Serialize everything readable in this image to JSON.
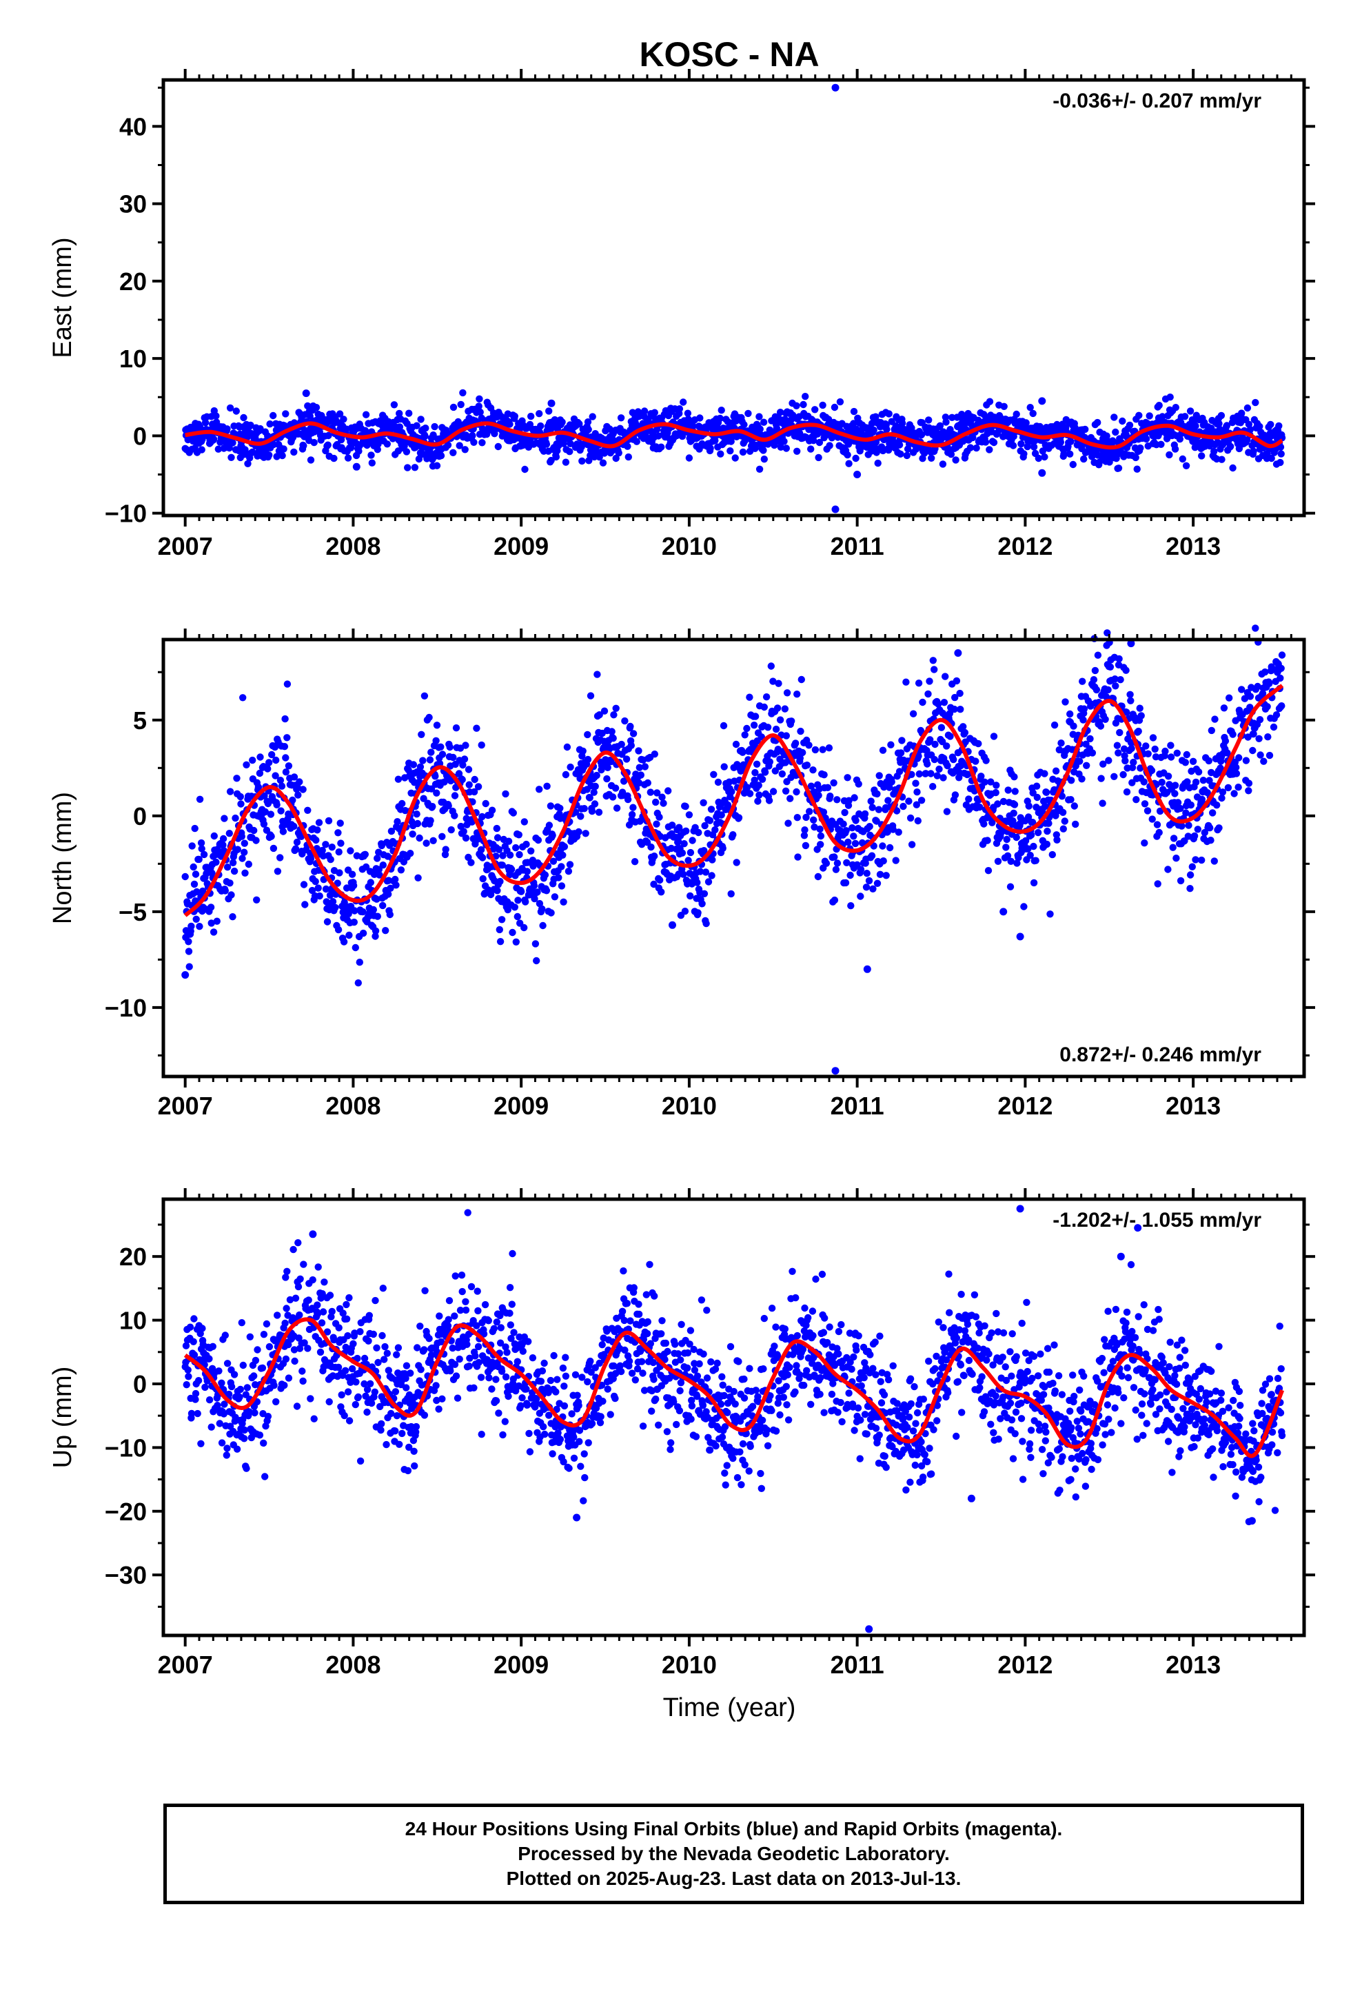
{
  "title": "KOSC - NA",
  "xlabel": "Time (year)",
  "caption": [
    "24 Hour Positions Using Final Orbits (blue) and Rapid Orbits (magenta).",
    "Processed by the Nevada Geodetic Laboratory.",
    "Plotted on 2025-Aug-23. Last data on 2013-Jul-13."
  ],
  "colors": {
    "points": "#0000ff",
    "fit": "#ff0000",
    "axis": "#000000"
  },
  "chart_data": [
    {
      "type": "scatter",
      "ylabel": "East (mm)",
      "rate": "-0.036+/- 0.207 mm/yr",
      "rate_position": "top-right",
      "xlim": [
        2006.87,
        2013.66
      ],
      "ylim": [
        -10.3,
        46
      ],
      "x_ticks": [
        2007,
        2008,
        2009,
        2010,
        2011,
        2012,
        2013
      ],
      "x_tick_labels": [
        "2007",
        "2008",
        "2009",
        "2010",
        "2011",
        "2012",
        "2013"
      ],
      "y_ticks": [
        -10,
        0,
        10,
        20,
        30,
        40
      ],
      "y_tick_labels": [
        "−10",
        "0",
        "10",
        "20",
        "30",
        "40"
      ],
      "fit": {
        "x": [
          2007.0,
          2007.15,
          2007.3,
          2007.45,
          2007.6,
          2007.75,
          2007.9,
          2008.05,
          2008.2,
          2008.35,
          2008.5,
          2008.65,
          2008.8,
          2008.95,
          2009.1,
          2009.25,
          2009.4,
          2009.55,
          2009.7,
          2009.85,
          2010.0,
          2010.15,
          2010.3,
          2010.45,
          2010.6,
          2010.75,
          2010.9,
          2011.05,
          2011.2,
          2011.35,
          2011.5,
          2011.65,
          2011.8,
          2011.95,
          2012.1,
          2012.25,
          2012.4,
          2012.55,
          2012.7,
          2012.85,
          2013.0,
          2013.15,
          2013.3,
          2013.45,
          2013.53
        ],
        "y": [
          0.1,
          0.5,
          -0.3,
          -1.0,
          0.6,
          1.6,
          0.4,
          -0.2,
          0.3,
          -0.4,
          -1.1,
          0.8,
          1.6,
          0.6,
          0.0,
          0.4,
          -0.6,
          -1.3,
          0.7,
          1.5,
          0.7,
          0.2,
          0.6,
          -0.5,
          1.0,
          1.4,
          0.3,
          -0.5,
          0.2,
          -0.8,
          -1.2,
          0.3,
          1.4,
          0.6,
          -0.2,
          0.1,
          -1.1,
          -1.4,
          0.6,
          1.3,
          0.2,
          -0.2,
          0.4,
          -1.3,
          -0.6
        ]
      },
      "outliers": [
        {
          "x": 2010.87,
          "y": 45
        },
        {
          "x": 2010.87,
          "y": -9.5
        },
        {
          "x": 2008.02,
          "y": -4.0
        },
        {
          "x": 2011.0,
          "y": -5.0
        },
        {
          "x": 2012.1,
          "y": -4.8
        },
        {
          "x": 2012.1,
          "y": 4.5
        },
        {
          "x": 2007.72,
          "y": 5.5
        },
        {
          "x": 2009.18,
          "y": 4.2
        }
      ]
    },
    {
      "type": "scatter",
      "ylabel": "North (mm)",
      "rate": "0.872+/- 0.246 mm/yr",
      "rate_position": "bottom-right",
      "xlim": [
        2006.87,
        2013.66
      ],
      "ylim": [
        -13.6,
        9.2
      ],
      "x_ticks": [
        2007,
        2008,
        2009,
        2010,
        2011,
        2012,
        2013
      ],
      "x_tick_labels": [
        "2007",
        "2008",
        "2009",
        "2010",
        "2011",
        "2012",
        "2013"
      ],
      "y_ticks": [
        -10,
        -5,
        0,
        5
      ],
      "y_tick_labels": [
        "−10",
        "−5",
        "0",
        "5"
      ],
      "fit": {
        "x": [
          2007.0,
          2007.12,
          2007.25,
          2007.37,
          2007.5,
          2007.62,
          2007.75,
          2007.87,
          2008.0,
          2008.12,
          2008.25,
          2008.37,
          2008.5,
          2008.62,
          2008.75,
          2008.87,
          2009.0,
          2009.12,
          2009.25,
          2009.37,
          2009.5,
          2009.62,
          2009.75,
          2009.87,
          2010.0,
          2010.12,
          2010.25,
          2010.37,
          2010.5,
          2010.62,
          2010.75,
          2010.87,
          2011.0,
          2011.12,
          2011.25,
          2011.37,
          2011.5,
          2011.62,
          2011.75,
          2011.87,
          2012.0,
          2012.12,
          2012.25,
          2012.37,
          2012.5,
          2012.62,
          2012.75,
          2012.87,
          2013.0,
          2013.12,
          2013.25,
          2013.37,
          2013.53
        ],
        "y": [
          -5.2,
          -4.2,
          -2.0,
          0.3,
          1.5,
          0.6,
          -1.6,
          -3.5,
          -4.4,
          -4.0,
          -2.0,
          0.9,
          2.5,
          1.8,
          -0.6,
          -2.9,
          -3.5,
          -2.8,
          -0.8,
          1.8,
          3.3,
          2.2,
          -0.2,
          -2.1,
          -2.6,
          -1.9,
          0.2,
          2.9,
          4.2,
          2.8,
          0.5,
          -1.4,
          -1.8,
          -1.0,
          1.1,
          3.8,
          5.0,
          3.7,
          0.8,
          -0.5,
          -0.8,
          0.0,
          2.2,
          4.8,
          6.0,
          4.6,
          1.7,
          -0.1,
          -0.1,
          1.2,
          3.5,
          5.6,
          6.8
        ]
      },
      "outliers": [
        {
          "x": 2010.87,
          "y": -13.3
        },
        {
          "x": 2011.06,
          "y": -8.0
        },
        {
          "x": 2011.6,
          "y": 8.5
        },
        {
          "x": 2012.63,
          "y": 9.0
        },
        {
          "x": 2011.97,
          "y": -6.3
        },
        {
          "x": 2009.9,
          "y": -5.7
        },
        {
          "x": 2007.0,
          "y": -8.3
        },
        {
          "x": 2011.87,
          "y": -5.0
        }
      ]
    },
    {
      "type": "scatter",
      "ylabel": "Up (mm)",
      "rate": "-1.202+/- 1.055 mm/yr",
      "rate_position": "top-right",
      "xlim": [
        2006.87,
        2013.66
      ],
      "ylim": [
        -39.5,
        29
      ],
      "x_ticks": [
        2007,
        2008,
        2009,
        2010,
        2011,
        2012,
        2013
      ],
      "x_tick_labels": [
        "2007",
        "2008",
        "2009",
        "2010",
        "2011",
        "2012",
        "2013"
      ],
      "y_ticks": [
        -30,
        -20,
        -10,
        0,
        10,
        20
      ],
      "y_tick_labels": [
        "−30",
        "−20",
        "−10",
        "0",
        "10",
        "20"
      ],
      "fit": {
        "x": [
          2007.0,
          2007.12,
          2007.25,
          2007.37,
          2007.5,
          2007.62,
          2007.75,
          2007.87,
          2008.0,
          2008.12,
          2008.25,
          2008.37,
          2008.5,
          2008.62,
          2008.75,
          2008.87,
          2009.0,
          2009.12,
          2009.25,
          2009.37,
          2009.5,
          2009.62,
          2009.75,
          2009.87,
          2010.0,
          2010.12,
          2010.25,
          2010.37,
          2010.5,
          2010.62,
          2010.75,
          2010.87,
          2011.0,
          2011.12,
          2011.25,
          2011.37,
          2011.5,
          2011.62,
          2011.75,
          2011.87,
          2012.0,
          2012.12,
          2012.25,
          2012.37,
          2012.5,
          2012.62,
          2012.75,
          2012.87,
          2013.0,
          2013.12,
          2013.25,
          2013.37,
          2013.53
        ],
        "y": [
          4.5,
          2.0,
          -2.5,
          -3.5,
          2.0,
          8.5,
          10.0,
          6.0,
          3.5,
          1.5,
          -3.5,
          -4.5,
          3.5,
          9.0,
          7.5,
          4.0,
          1.5,
          -2.0,
          -6.0,
          -5.5,
          3.0,
          8.0,
          5.5,
          2.5,
          0.5,
          -2.0,
          -6.5,
          -6.5,
          1.0,
          6.5,
          5.0,
          1.5,
          -1.0,
          -4.0,
          -8.5,
          -8.0,
          0.0,
          5.5,
          2.5,
          -1.0,
          -2.0,
          -4.5,
          -9.5,
          -8.5,
          0.5,
          4.5,
          2.5,
          -1.0,
          -3.0,
          -5.0,
          -8.5,
          -11.0,
          -1.0
        ]
      },
      "outliers": [
        {
          "x": 2011.07,
          "y": -38.5
        },
        {
          "x": 2011.97,
          "y": 27.5
        },
        {
          "x": 2012.67,
          "y": 24.5
        },
        {
          "x": 2007.76,
          "y": 23.5
        },
        {
          "x": 2009.33,
          "y": -21.0
        },
        {
          "x": 2013.35,
          "y": -21.5
        },
        {
          "x": 2011.68,
          "y": -18.0
        },
        {
          "x": 2012.57,
          "y": 20.0
        }
      ]
    }
  ]
}
